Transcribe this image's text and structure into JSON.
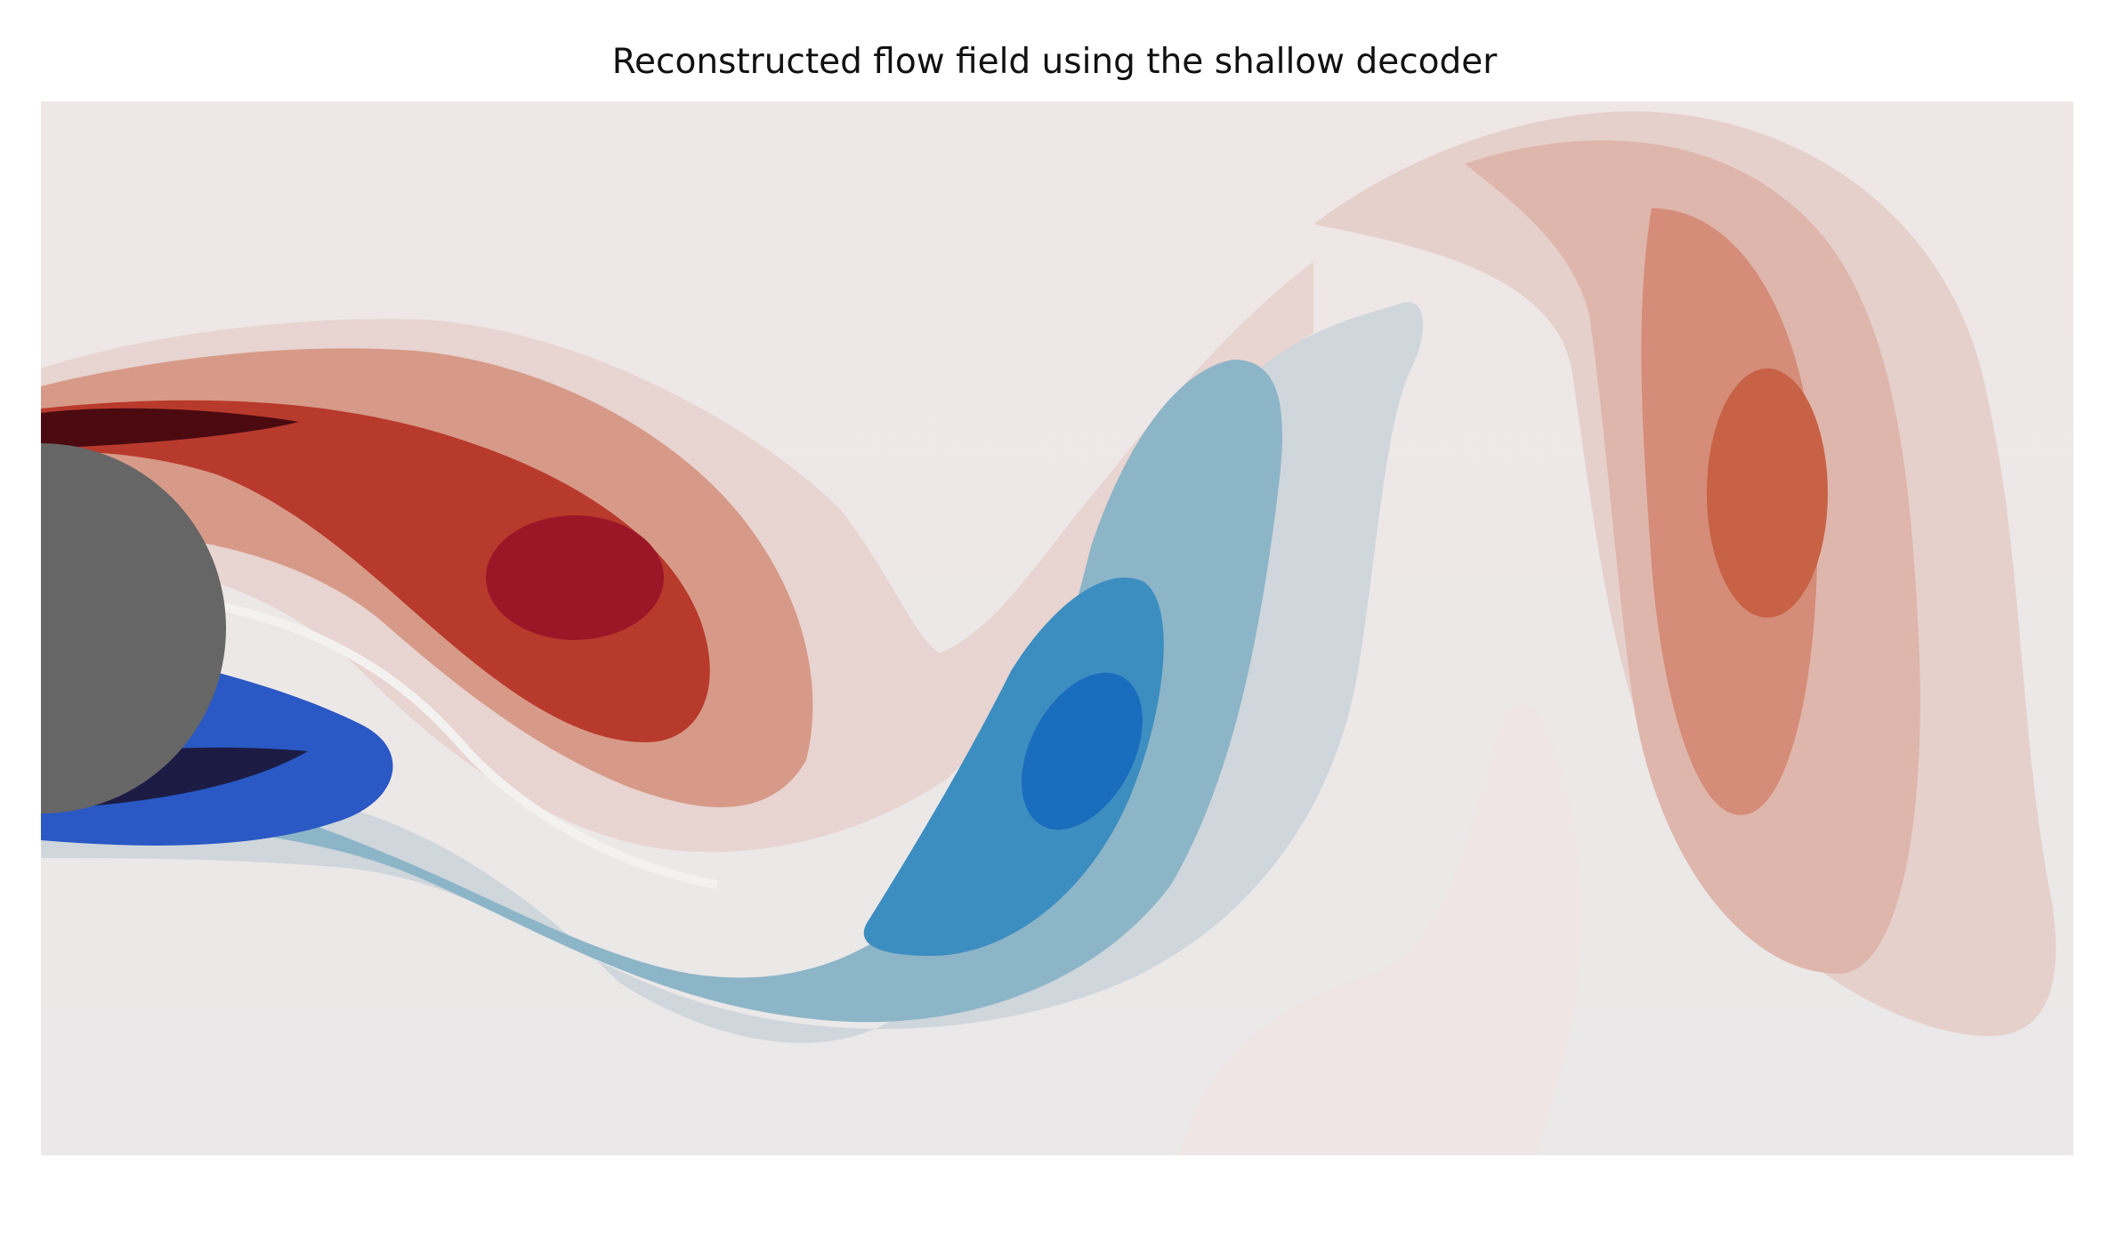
{
  "chart_data": {
    "type": "heatmap",
    "title": "Reconstructed flow field using the shallow decoder",
    "xlabel": "",
    "ylabel": "",
    "axes_visible": false,
    "grid": false,
    "legend": "none",
    "colormap": "diverging red-white-blue",
    "obstacle": {
      "shape": "circle",
      "color": "#666666"
    },
    "vortices": [
      {
        "name": "",
        "sign": "positive",
        "color": "#9b1728"
      },
      {
        "name": "",
        "sign": "negative",
        "color": "#1a6dbd"
      },
      {
        "name": "",
        "sign": "positive",
        "color": "#c76246"
      }
    ],
    "colors": {
      "background": "#ece7e8",
      "positive_peak": "#4a0a10",
      "negative_peak": "#1b1b44",
      "obstacle": "#666666"
    }
  }
}
